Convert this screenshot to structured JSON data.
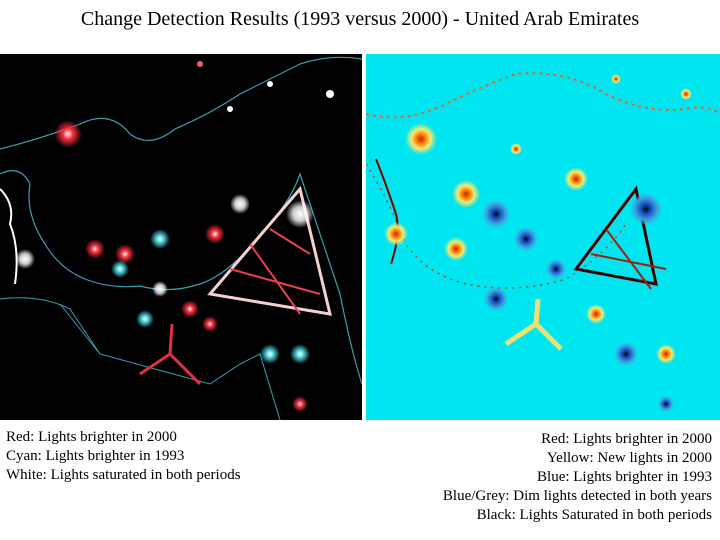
{
  "title": "Change Detection Results (1993 versus 2000) - United Arab Emirates",
  "left_legend": [
    "Red: Lights brighter in 2000",
    "Cyan: Lights brighter in 1993",
    "White: Lights saturated in both periods"
  ],
  "right_legend": [
    "Red: Lights brighter in 2000",
    "Yellow: New lights in 2000",
    "Blue: Lights brighter in 1993",
    "Blue/Grey: Dim lights detected in both years",
    "Black: Lights Saturated in both periods"
  ],
  "colors": {
    "left_background": "#000000",
    "right_background": "#00e6f0",
    "red": "#e0202a",
    "cyan": "#40c8d0",
    "white": "#ffffff",
    "yellow": "#f0e060",
    "blue": "#1060c0"
  }
}
